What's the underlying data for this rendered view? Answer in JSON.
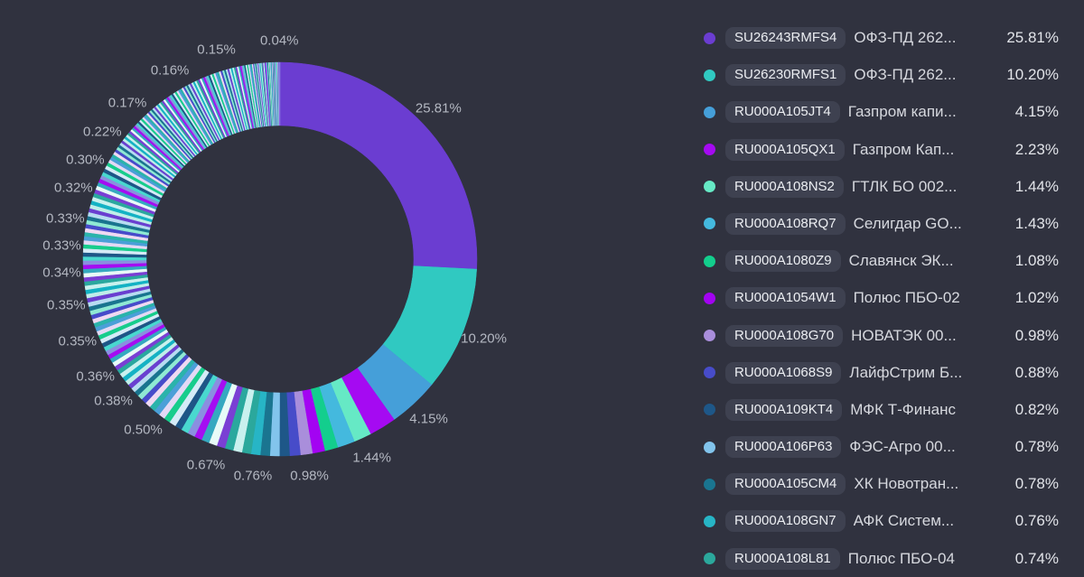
{
  "colors": {
    "background": "#30323f",
    "pill_bg": "#3e4150",
    "pill_text": "#eceef2",
    "legend_name_text": "#d6d8de",
    "legend_percent_text": "#e2e4e9",
    "callout_text": "#b4b8c2"
  },
  "chart_data": {
    "type": "pie",
    "donut": true,
    "unit": "%",
    "legend_position": "right",
    "total": 100,
    "main_slices": [
      {
        "code": "SU26243RMFS4",
        "name": "ОФЗ-ПД 262...",
        "value": 25.81,
        "percent_label": "25.81%",
        "color": "#6b3dd1"
      },
      {
        "code": "SU26230RMFS1",
        "name": "ОФЗ-ПД 262...",
        "value": 10.2,
        "percent_label": "10.20%",
        "color": "#30c9c1"
      },
      {
        "code": "RU000A105JT4",
        "name": "Газпром капи...",
        "value": 4.15,
        "percent_label": "4.15%",
        "color": "#459fd9"
      },
      {
        "code": "RU000A105QX1",
        "name": "Газпром Кап...",
        "value": 2.23,
        "percent_label": "2.23%",
        "color": "#a50af2"
      },
      {
        "code": "RU000A108NS2",
        "name": "ГТЛК БО 002...",
        "value": 1.44,
        "percent_label": "1.44%",
        "color": "#66e9c5"
      },
      {
        "code": "RU000A108RQ7",
        "name": "Селигдар GO...",
        "value": 1.43,
        "percent_label": "1.43%",
        "color": "#44b9de"
      },
      {
        "code": "RU000A1080Z9",
        "name": "Славянск ЭК...",
        "value": 1.08,
        "percent_label": "1.08%",
        "color": "#13ce8d"
      },
      {
        "code": "RU000A1054W1",
        "name": "Полюс ПБО-02",
        "value": 1.02,
        "percent_label": "1.02%",
        "color": "#a303f2"
      },
      {
        "code": "RU000A108G70",
        "name": "НОВАТЭК 00...",
        "value": 0.98,
        "percent_label": "0.98%",
        "color": "#a98edb"
      },
      {
        "code": "RU000A1068S9",
        "name": "ЛайфСтрим Б...",
        "value": 0.88,
        "percent_label": "0.88%",
        "color": "#474cc9"
      },
      {
        "code": "RU000A109KT4",
        "name": "МФК Т-Финанс",
        "value": 0.82,
        "percent_label": "0.82%",
        "color": "#1e5788"
      },
      {
        "code": "RU000A106P63",
        "name": "ФЭС-Агро 00...",
        "value": 0.78,
        "percent_label": "0.78%",
        "color": "#82c4ec"
      },
      {
        "code": "RU000A105CM4",
        "name": "ХК Новотран...",
        "value": 0.78,
        "percent_label": "0.78%",
        "color": "#1a7590"
      },
      {
        "code": "RU000A108GN7",
        "name": "АФК Систем...",
        "value": 0.76,
        "percent_label": "0.76%",
        "color": "#27b5c6"
      },
      {
        "code": "RU000A108L81",
        "name": "Полюс ПБО-04",
        "value": 0.74,
        "percent_label": "0.74%",
        "color": "#2ba89c"
      }
    ],
    "tail_runs": [
      [
        0.72,
        1
      ],
      [
        0.7,
        1
      ],
      [
        0.68,
        1
      ],
      [
        0.67,
        1
      ],
      [
        0.65,
        1
      ],
      [
        0.63,
        1
      ],
      [
        0.61,
        1
      ],
      [
        0.59,
        1
      ],
      [
        0.57,
        1
      ],
      [
        0.55,
        1
      ],
      [
        0.53,
        1
      ],
      [
        0.51,
        1
      ],
      [
        0.5,
        1
      ],
      [
        0.48,
        1
      ],
      [
        0.46,
        1
      ],
      [
        0.44,
        1
      ],
      [
        0.42,
        1
      ],
      [
        0.4,
        1
      ],
      [
        0.39,
        1
      ],
      [
        0.38,
        2
      ],
      [
        0.37,
        3
      ],
      [
        0.36,
        5
      ],
      [
        0.35,
        13
      ],
      [
        0.34,
        9
      ],
      [
        0.33,
        12
      ],
      [
        0.32,
        6
      ],
      [
        0.31,
        3
      ],
      [
        0.3,
        3
      ],
      [
        0.29,
        1
      ],
      [
        0.28,
        1
      ],
      [
        0.27,
        1
      ],
      [
        0.26,
        1
      ],
      [
        0.25,
        1
      ],
      [
        0.24,
        1
      ],
      [
        0.23,
        2
      ],
      [
        0.22,
        2
      ],
      [
        0.21,
        2
      ],
      [
        0.2,
        2
      ],
      [
        0.19,
        2
      ],
      [
        0.18,
        3
      ],
      [
        0.17,
        5
      ],
      [
        0.16,
        25
      ],
      [
        0.15,
        25
      ],
      [
        0.14,
        4
      ],
      [
        0.13,
        4
      ],
      [
        0.12,
        4
      ],
      [
        0.11,
        4
      ],
      [
        0.1,
        4
      ],
      [
        0.09,
        4
      ],
      [
        0.08,
        5
      ],
      [
        0.07,
        5
      ],
      [
        0.06,
        6
      ],
      [
        0.05,
        6
      ],
      [
        0.04,
        10
      ]
    ],
    "tail_palette": [
      "#c9f1ee",
      "#2aa89e",
      "#7a3fd4",
      "#e8fbf7",
      "#35a9c0",
      "#a50df2",
      "#8a8fe0",
      "#49d8cf",
      "#1e5687",
      "#d5ebf7",
      "#17cd8c",
      "#e3d9f5",
      "#4a9fd8",
      "#2bb3ab",
      "#efd9f2",
      "#474bca",
      "#8fe9d3",
      "#19748f",
      "#b7dcf1",
      "#6a3fd0",
      "#bfeee9",
      "#14b2c4"
    ],
    "callouts": [
      {
        "text": "25.81%",
        "at": 12.9
      },
      {
        "text": "10.20%",
        "at": 30.9
      },
      {
        "text": "4.15%",
        "at": 38.1
      },
      {
        "text": "1.44%",
        "at": 43.1
      },
      {
        "text": "0.98%",
        "at": 47.85
      },
      {
        "text": "0.76%",
        "at": 51.98
      },
      {
        "text": "0.67%",
        "at": 55.5
      },
      {
        "text": "0.50%",
        "at": 60.76
      },
      {
        "text": "0.38%",
        "at": 63.79
      },
      {
        "text": "0.36%",
        "at": 66.0
      },
      {
        "text": "0.35%",
        "at": 68.85
      },
      {
        "text": "0.35%",
        "at": 71.65
      },
      {
        "text": "0.34%",
        "at": 74.0
      },
      {
        "text": "0.33%",
        "at": 76.0
      },
      {
        "text": "0.33%",
        "at": 78.0
      },
      {
        "text": "0.32%",
        "at": 80.3
      },
      {
        "text": "0.30%",
        "at": 82.5
      },
      {
        "text": "0.22%",
        "at": 84.9
      },
      {
        "text": "0.17%",
        "at": 87.7
      },
      {
        "text": "0.16%",
        "at": 91.6
      },
      {
        "text": "0.15%",
        "at": 95.3
      },
      {
        "text": "0.04%",
        "at": 99.95
      }
    ]
  }
}
